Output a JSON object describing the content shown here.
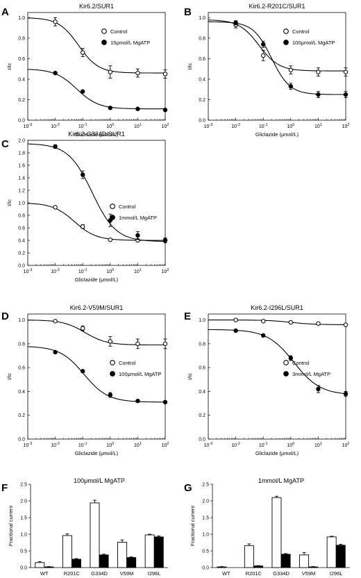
{
  "chart_data": [
    {
      "panel": "A",
      "type": "line",
      "title": "Kir6.2/SUR1",
      "xlabel": "Gliclazide (μmol/L)",
      "ylabel": "I/Ic",
      "xscale": "log",
      "xlim": [
        0.001,
        100
      ],
      "ylim": [
        0,
        1.05
      ],
      "x_ticks": [
        "10-3",
        "10-2",
        "10-1",
        "100",
        "101",
        "102"
      ],
      "y_ticks": [
        "0.0",
        "0.2",
        "0.4",
        "0.6",
        "0.8",
        "1.0"
      ],
      "legend_position": "top-right",
      "series": [
        {
          "name": "Control",
          "marker": "open-circle",
          "x": [
            0.01,
            0.1,
            1,
            10,
            100
          ],
          "y": [
            0.96,
            0.66,
            0.47,
            0.46,
            0.45
          ],
          "err": [
            0.04,
            0.04,
            0.06,
            0.04,
            0.04
          ],
          "fit": {
            "top": 1.0,
            "bottom": 0.46,
            "ic50": 0.07,
            "hill": 1.2
          }
        },
        {
          "name": "15μmol/L MgATP",
          "marker": "filled-circle",
          "x": [
            0.01,
            0.1,
            1,
            10,
            100
          ],
          "y": [
            0.46,
            0.28,
            0.12,
            0.11,
            0.1
          ],
          "err": [
            0.01,
            0.01,
            0.01,
            0.01,
            0.01
          ],
          "fit": {
            "top": 0.5,
            "bottom": 0.11,
            "ic50": 0.06,
            "hill": 1.1
          }
        }
      ]
    },
    {
      "panel": "B",
      "type": "line",
      "title": "Kir6.2-R201C/SUR1",
      "xlabel": "Gliclazide (μmol/L)",
      "ylabel": "I/Ic",
      "xscale": "log",
      "xlim": [
        0.001,
        100
      ],
      "ylim": [
        0,
        1.05
      ],
      "x_ticks": [
        "10-3",
        "10-2",
        "10-1",
        "100",
        "101",
        "102"
      ],
      "y_ticks": [
        "0.0",
        "0.2",
        "0.4",
        "0.6",
        "0.8",
        "1.0"
      ],
      "legend_position": "top-right",
      "series": [
        {
          "name": "Control",
          "marker": "open-circle",
          "x": [
            0.01,
            0.1,
            1,
            10,
            100
          ],
          "y": [
            0.93,
            0.63,
            0.49,
            0.47,
            0.47
          ],
          "err": [
            0.03,
            0.05,
            0.04,
            0.04,
            0.04
          ],
          "fit": {
            "top": 0.98,
            "bottom": 0.48,
            "ic50": 0.07,
            "hill": 1.2
          }
        },
        {
          "name": "100μmol/L MgATP",
          "marker": "filled-circle",
          "x": [
            0.01,
            0.1,
            1,
            10,
            100
          ],
          "y": [
            0.95,
            0.74,
            0.33,
            0.25,
            0.25
          ],
          "err": [
            0.02,
            0.03,
            0.03,
            0.03,
            0.03
          ],
          "fit": {
            "top": 0.96,
            "bottom": 0.25,
            "ic50": 0.2,
            "hill": 1.3
          }
        }
      ]
    },
    {
      "panel": "C",
      "type": "line",
      "title": "Kir6.2-G334D/SUR1",
      "xlabel": "Gliclazide (μmol/L)",
      "ylabel": "I/Ic",
      "xscale": "log",
      "xlim": [
        0.001,
        100
      ],
      "ylim": [
        0,
        2.0
      ],
      "x_ticks": [
        "10-3",
        "10-2",
        "10-1",
        "100",
        "101",
        "102"
      ],
      "y_ticks": [
        "0.0",
        "0.2",
        "0.4",
        "0.6",
        "0.8",
        "1.0",
        "1.2",
        "1.4",
        "1.6",
        "1.8",
        "2.0"
      ],
      "legend_position": "center-right",
      "series": [
        {
          "name": "Control",
          "marker": "open-circle",
          "x": [
            0.01,
            0.1,
            1,
            10,
            100
          ],
          "y": [
            0.93,
            0.62,
            0.41,
            0.4,
            0.4
          ],
          "err": [
            0.02,
            0.03,
            0.02,
            0.02,
            0.02
          ],
          "fit": {
            "top": 1.0,
            "bottom": 0.4,
            "ic50": 0.05,
            "hill": 1.1
          }
        },
        {
          "name": "1mmol/L MgATP",
          "marker": "filled-circle",
          "x": [
            0.01,
            0.1,
            1,
            10,
            100
          ],
          "y": [
            1.9,
            1.45,
            0.72,
            0.48,
            0.4
          ],
          "err": [
            0.03,
            0.06,
            0.1,
            0.06,
            0.04
          ],
          "fit": {
            "top": 1.95,
            "bottom": 0.38,
            "ic50": 0.22,
            "hill": 1.0
          }
        }
      ]
    },
    {
      "panel": "D",
      "type": "line",
      "title": "Kir6.2-V59M/SUR1",
      "xlabel": "Gliclazide (μmol/L)",
      "ylabel": "I/Ic",
      "xscale": "log",
      "xlim": [
        0.001,
        100
      ],
      "ylim": [
        0,
        1.05
      ],
      "x_ticks": [
        "10-3",
        "10-2",
        "10-1",
        "100",
        "101",
        "102"
      ],
      "y_ticks": [
        "0.0",
        "0.2",
        "0.4",
        "0.6",
        "0.8",
        "1.0"
      ],
      "legend_position": "right",
      "series": [
        {
          "name": "Control",
          "marker": "open-circle",
          "x": [
            0.01,
            0.1,
            1,
            10,
            100
          ],
          "y": [
            0.99,
            0.93,
            0.82,
            0.8,
            0.8
          ],
          "err": [
            0.01,
            0.02,
            0.04,
            0.04,
            0.04
          ],
          "fit": {
            "top": 1.0,
            "bottom": 0.79,
            "ic50": 0.12,
            "hill": 1.1
          }
        },
        {
          "name": "100μmol/L MgATP",
          "marker": "filled-circle",
          "x": [
            0.01,
            0.1,
            1,
            10,
            100
          ],
          "y": [
            0.73,
            0.57,
            0.37,
            0.32,
            0.31
          ],
          "err": [
            0.01,
            0.01,
            0.02,
            0.01,
            0.01
          ],
          "fit": {
            "top": 0.78,
            "bottom": 0.31,
            "ic50": 0.11,
            "hill": 1.0
          }
        }
      ]
    },
    {
      "panel": "E",
      "type": "line",
      "title": "Kir6.2-I296L/SUR1",
      "xlabel": "Gliclazide (μmol/L)",
      "ylabel": "I/Ic",
      "xscale": "log",
      "xlim": [
        0.001,
        100
      ],
      "ylim": [
        0,
        1.05
      ],
      "x_ticks": [
        "10-3",
        "10-2",
        "10-1",
        "100",
        "101",
        "102"
      ],
      "y_ticks": [
        "0.0",
        "0.2",
        "0.4",
        "0.6",
        "0.8",
        "1.0"
      ],
      "legend_position": "right",
      "series": [
        {
          "name": "Control",
          "marker": "open-circle",
          "x": [
            0.01,
            0.1,
            1,
            10,
            100
          ],
          "y": [
            1.0,
            0.99,
            0.98,
            0.97,
            0.96
          ],
          "err": [
            0.01,
            0.01,
            0.01,
            0.01,
            0.01
          ],
          "fit": {
            "top": 1.0,
            "bottom": 0.96,
            "ic50": 1.0,
            "hill": 1.0
          }
        },
        {
          "name": "3mmol/L MgATP",
          "marker": "filled-circle",
          "x": [
            0.01,
            0.1,
            1,
            10,
            100
          ],
          "y": [
            0.91,
            0.87,
            0.68,
            0.42,
            0.38
          ],
          "err": [
            0.01,
            0.01,
            0.02,
            0.03,
            0.02
          ],
          "fit": {
            "top": 0.92,
            "bottom": 0.37,
            "ic50": 1.3,
            "hill": 0.9
          }
        }
      ]
    },
    {
      "panel": "F",
      "type": "bar",
      "title": "100μmol/L MgATP",
      "ylabel": "Fractional current",
      "categories": [
        "WT",
        "R201C",
        "G334D",
        "V59M",
        "I296L"
      ],
      "ylim": [
        0,
        2.5
      ],
      "y_ticks": [
        "0.0",
        "0.5",
        "1.0",
        "1.5",
        "2.0",
        "2.5"
      ],
      "series": [
        {
          "fill": "open",
          "values": [
            0.15,
            0.96,
            1.94,
            0.76,
            0.98
          ],
          "err": [
            0.03,
            0.05,
            0.08,
            0.07,
            0.02
          ]
        },
        {
          "fill": "filled",
          "values": [
            0.02,
            0.25,
            0.38,
            0.3,
            0.92
          ],
          "err": [
            0.01,
            0.02,
            0.02,
            0.02,
            0.03
          ]
        }
      ]
    },
    {
      "panel": "G",
      "type": "bar",
      "title": "1mmol/L MgATP",
      "ylabel": "Fractional current",
      "categories": [
        "WT",
        "R201C",
        "G334D",
        "V59M",
        "I296L"
      ],
      "ylim": [
        0,
        2.5
      ],
      "y_ticks": [
        "0.0",
        "0.5",
        "1.0",
        "1.5",
        "2.0",
        "2.5"
      ],
      "series": [
        {
          "fill": "open",
          "values": [
            0.02,
            0.66,
            2.1,
            0.38,
            0.92
          ],
          "err": [
            0.01,
            0.05,
            0.04,
            0.07,
            0.02
          ]
        },
        {
          "fill": "filled",
          "values": [
            0.0,
            0.05,
            0.4,
            0.02,
            0.67
          ],
          "err": [
            0.0,
            0.01,
            0.02,
            0.01,
            0.03
          ]
        }
      ]
    }
  ]
}
